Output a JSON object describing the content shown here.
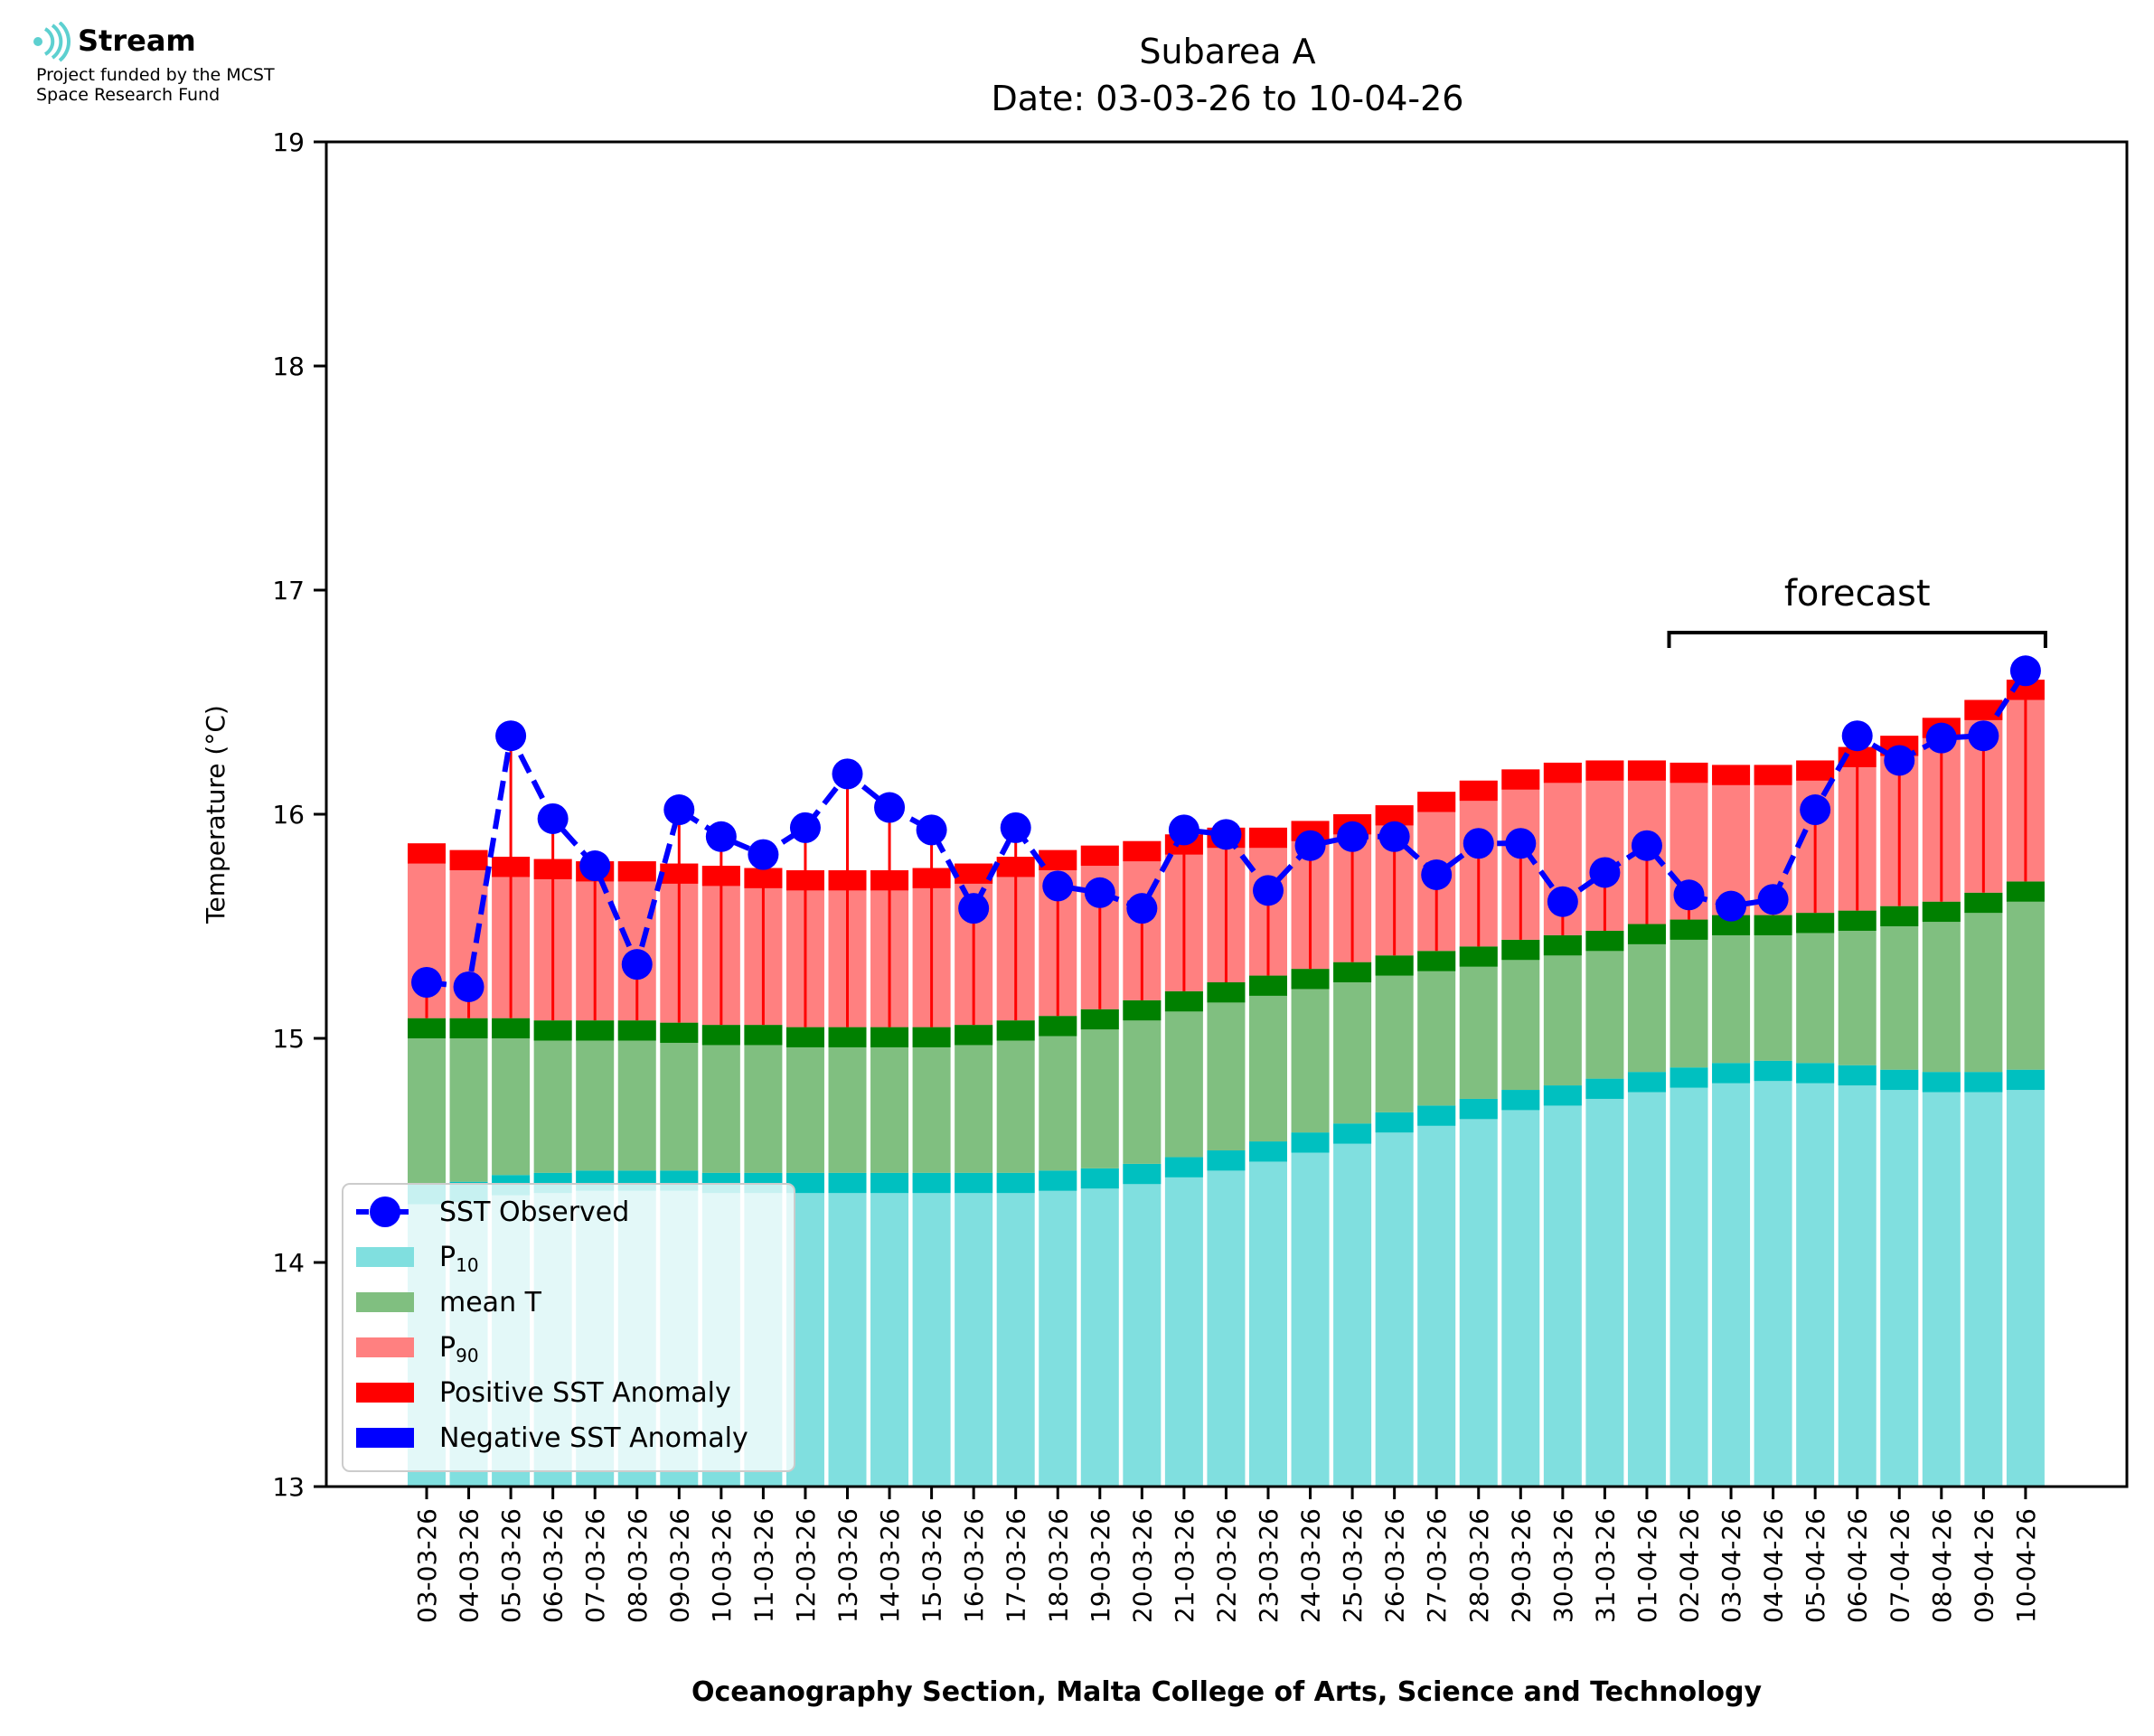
{
  "logo": {
    "name": "Stream",
    "line1": "Project funded by the MCST",
    "line2": "Space Research Fund"
  },
  "chart_data": {
    "type": "bar",
    "title": "Subarea A",
    "subtitle": "Date: 03-03-26 to 10-04-26",
    "ylabel": "Temperature (°C)",
    "xlabel": "Oceanography Section, Malta College of Arts, Science and Technology",
    "ylim": [
      13,
      19
    ],
    "yticks": [
      "13",
      "14",
      "15",
      "16",
      "17",
      "18",
      "19"
    ],
    "categories": [
      "03-03-26",
      "04-03-26",
      "05-03-26",
      "06-03-26",
      "07-03-26",
      "08-03-26",
      "09-03-26",
      "10-03-26",
      "11-03-26",
      "12-03-26",
      "13-03-26",
      "14-03-26",
      "15-03-26",
      "16-03-26",
      "17-03-26",
      "18-03-26",
      "19-03-26",
      "20-03-26",
      "21-03-26",
      "22-03-26",
      "23-03-26",
      "24-03-26",
      "25-03-26",
      "26-03-26",
      "27-03-26",
      "28-03-26",
      "29-03-26",
      "30-03-26",
      "31-03-26",
      "01-04-26",
      "02-04-26",
      "03-04-26",
      "04-04-26",
      "05-04-26",
      "06-04-26",
      "07-04-26",
      "08-04-26",
      "09-04-26",
      "10-04-26"
    ],
    "series": [
      {
        "name": "SST Observed",
        "values": [
          15.25,
          15.23,
          16.35,
          15.98,
          15.77,
          15.33,
          16.02,
          15.9,
          15.82,
          15.94,
          16.18,
          16.03,
          15.93,
          15.58,
          15.94,
          15.68,
          15.65,
          15.58,
          15.93,
          15.91,
          15.66,
          15.86,
          15.9,
          15.9,
          15.73,
          15.87,
          15.87,
          15.61,
          15.74,
          15.86,
          15.64,
          15.59,
          15.62,
          16.02,
          16.35,
          16.24,
          16.34,
          16.35,
          16.64
        ]
      },
      {
        "name": "P",
        "sub": "10",
        "values": [
          14.35,
          14.36,
          14.39,
          14.4,
          14.41,
          14.41,
          14.41,
          14.4,
          14.4,
          14.4,
          14.4,
          14.4,
          14.4,
          14.4,
          14.4,
          14.41,
          14.42,
          14.44,
          14.47,
          14.5,
          14.54,
          14.58,
          14.62,
          14.67,
          14.7,
          14.73,
          14.77,
          14.79,
          14.82,
          14.85,
          14.87,
          14.89,
          14.9,
          14.89,
          14.88,
          14.86,
          14.85,
          14.85,
          14.86
        ]
      },
      {
        "name": "mean T",
        "values": [
          15.09,
          15.09,
          15.09,
          15.08,
          15.08,
          15.08,
          15.07,
          15.06,
          15.06,
          15.05,
          15.05,
          15.05,
          15.05,
          15.06,
          15.08,
          15.1,
          15.13,
          15.17,
          15.21,
          15.25,
          15.28,
          15.31,
          15.34,
          15.37,
          15.39,
          15.41,
          15.44,
          15.46,
          15.48,
          15.51,
          15.53,
          15.55,
          15.55,
          15.56,
          15.57,
          15.59,
          15.61,
          15.65,
          15.7
        ]
      },
      {
        "name": "P",
        "sub": "90",
        "values": [
          15.87,
          15.84,
          15.81,
          15.8,
          15.79,
          15.79,
          15.78,
          15.77,
          15.76,
          15.75,
          15.75,
          15.75,
          15.76,
          15.78,
          15.81,
          15.84,
          15.86,
          15.88,
          15.91,
          15.94,
          15.94,
          15.97,
          16.0,
          16.04,
          16.1,
          16.15,
          16.2,
          16.23,
          16.24,
          16.24,
          16.23,
          16.22,
          16.22,
          16.24,
          16.3,
          16.35,
          16.43,
          16.51,
          16.6
        ]
      },
      {
        "name": "Positive SST Anomaly"
      },
      {
        "name": "Negative SST Anomaly"
      }
    ],
    "annotation": "forecast",
    "forecast_start": "02-04-26",
    "forecast_end": "10-04-26",
    "legend_position": "lower-left",
    "colors": {
      "p10": "#80dfdf",
      "p10_band": "#00c0c0",
      "mean": "#80bf80",
      "mean_band": "#008000",
      "p90": "#ff8080",
      "p90_band": "#ff0000",
      "sst": "#0000ff",
      "anomaly_pos": "#ff0000",
      "anomaly_neg": "#0000ff",
      "logo": "#5dd0d0"
    }
  }
}
